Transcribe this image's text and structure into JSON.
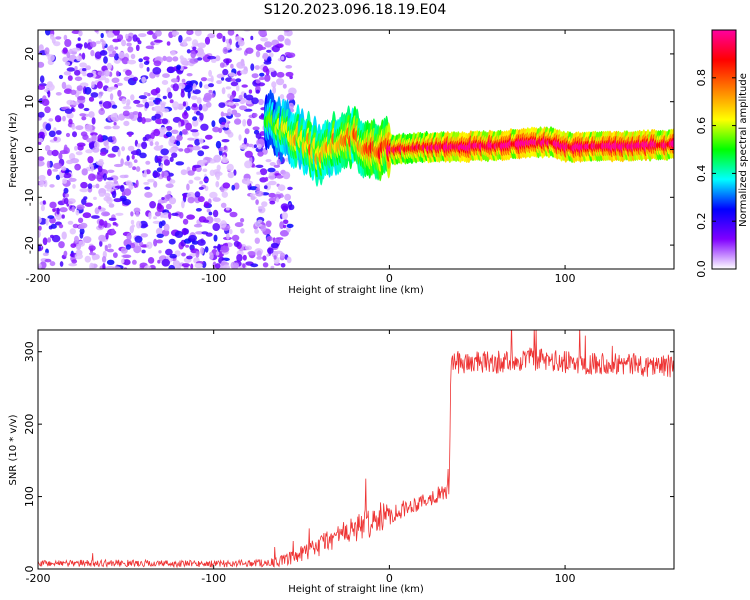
{
  "title": "S120.2023.096.18.19.E04",
  "chart_data": [
    {
      "type": "heatmap",
      "xlabel": "Height of straight line (km)",
      "ylabel": "Frequency (Hz)",
      "xlim": [
        -200,
        162
      ],
      "ylim": [
        -25,
        25
      ],
      "x_ticks": [
        -200,
        -100,
        0,
        100
      ],
      "y_ticks": [
        20,
        10,
        0,
        -10,
        -20
      ],
      "colorbar": {
        "label": "Normalized spectral amplitude",
        "range": [
          0,
          1
        ],
        "ticks": [
          "0.0",
          "0.2",
          "0.4",
          "0.6",
          "0.8"
        ],
        "colors": [
          "#ffffff",
          "#8000ff",
          "#0000ff",
          "#00ffff",
          "#00ff00",
          "#ffff00",
          "#ff8000",
          "#ff0000",
          "#ff00a0"
        ]
      },
      "noise_region_x": [
        -200,
        -63
      ],
      "noise_level": 0.15,
      "signal_ridge": [
        {
          "x": -70,
          "y": 6,
          "a": 0.35
        },
        {
          "x": -62,
          "y": 4,
          "a": 0.45
        },
        {
          "x": -55,
          "y": 3,
          "a": 0.55
        },
        {
          "x": -50,
          "y": 2,
          "a": 0.55
        },
        {
          "x": -45,
          "y": 1,
          "a": 0.6
        },
        {
          "x": -40,
          "y": -1,
          "a": 0.55
        },
        {
          "x": -35,
          "y": 1,
          "a": 0.55
        },
        {
          "x": -28,
          "y": 0.5,
          "a": 0.6
        },
        {
          "x": -20,
          "y": 3,
          "a": 0.6
        },
        {
          "x": -15,
          "y": 0.5,
          "a": 0.65
        },
        {
          "x": -5,
          "y": 0.5,
          "a": 0.7
        },
        {
          "x": 0,
          "y": 0,
          "a": 0.8
        },
        {
          "x": 20,
          "y": 0.5,
          "a": 0.8
        },
        {
          "x": 40,
          "y": 0.5,
          "a": 0.9
        },
        {
          "x": 60,
          "y": 0.8,
          "a": 0.9
        },
        {
          "x": 80,
          "y": 1.5,
          "a": 0.9
        },
        {
          "x": 92,
          "y": 1.5,
          "a": 0.9
        },
        {
          "x": 100,
          "y": 0.5,
          "a": 0.85
        },
        {
          "x": 120,
          "y": 0.5,
          "a": 0.9
        },
        {
          "x": 140,
          "y": 0.8,
          "a": 0.9
        },
        {
          "x": 162,
          "y": 1,
          "a": 0.85
        }
      ]
    },
    {
      "type": "line",
      "xlabel": "Height of straight line (km)",
      "ylabel": "SNR (10 * v/v)",
      "xlim": [
        -200,
        162
      ],
      "ylim": [
        0,
        330
      ],
      "x_ticks": [
        -200,
        -100,
        0,
        100
      ],
      "y_ticks": [
        0,
        100,
        200,
        300
      ],
      "color": "#ee3333",
      "series": [
        {
          "x": [
            -200,
            -150,
            -100,
            -80,
            -65,
            -55,
            -45,
            -35,
            -25,
            -15,
            -6,
            0,
            10,
            20,
            30,
            34,
            35,
            40,
            60,
            80,
            100,
            120,
            140,
            162
          ],
          "values": [
            8,
            8,
            7,
            8,
            9,
            15,
            25,
            40,
            50,
            60,
            70,
            75,
            85,
            95,
            105,
            108,
            285,
            285,
            285,
            290,
            285,
            285,
            282,
            280
          ],
          "noise": [
            6,
            6,
            6,
            6,
            8,
            12,
            18,
            20,
            22,
            25,
            28,
            18,
            14,
            14,
            14,
            14,
            20,
            20,
            20,
            20,
            20,
            20,
            20,
            20
          ]
        }
      ]
    }
  ]
}
